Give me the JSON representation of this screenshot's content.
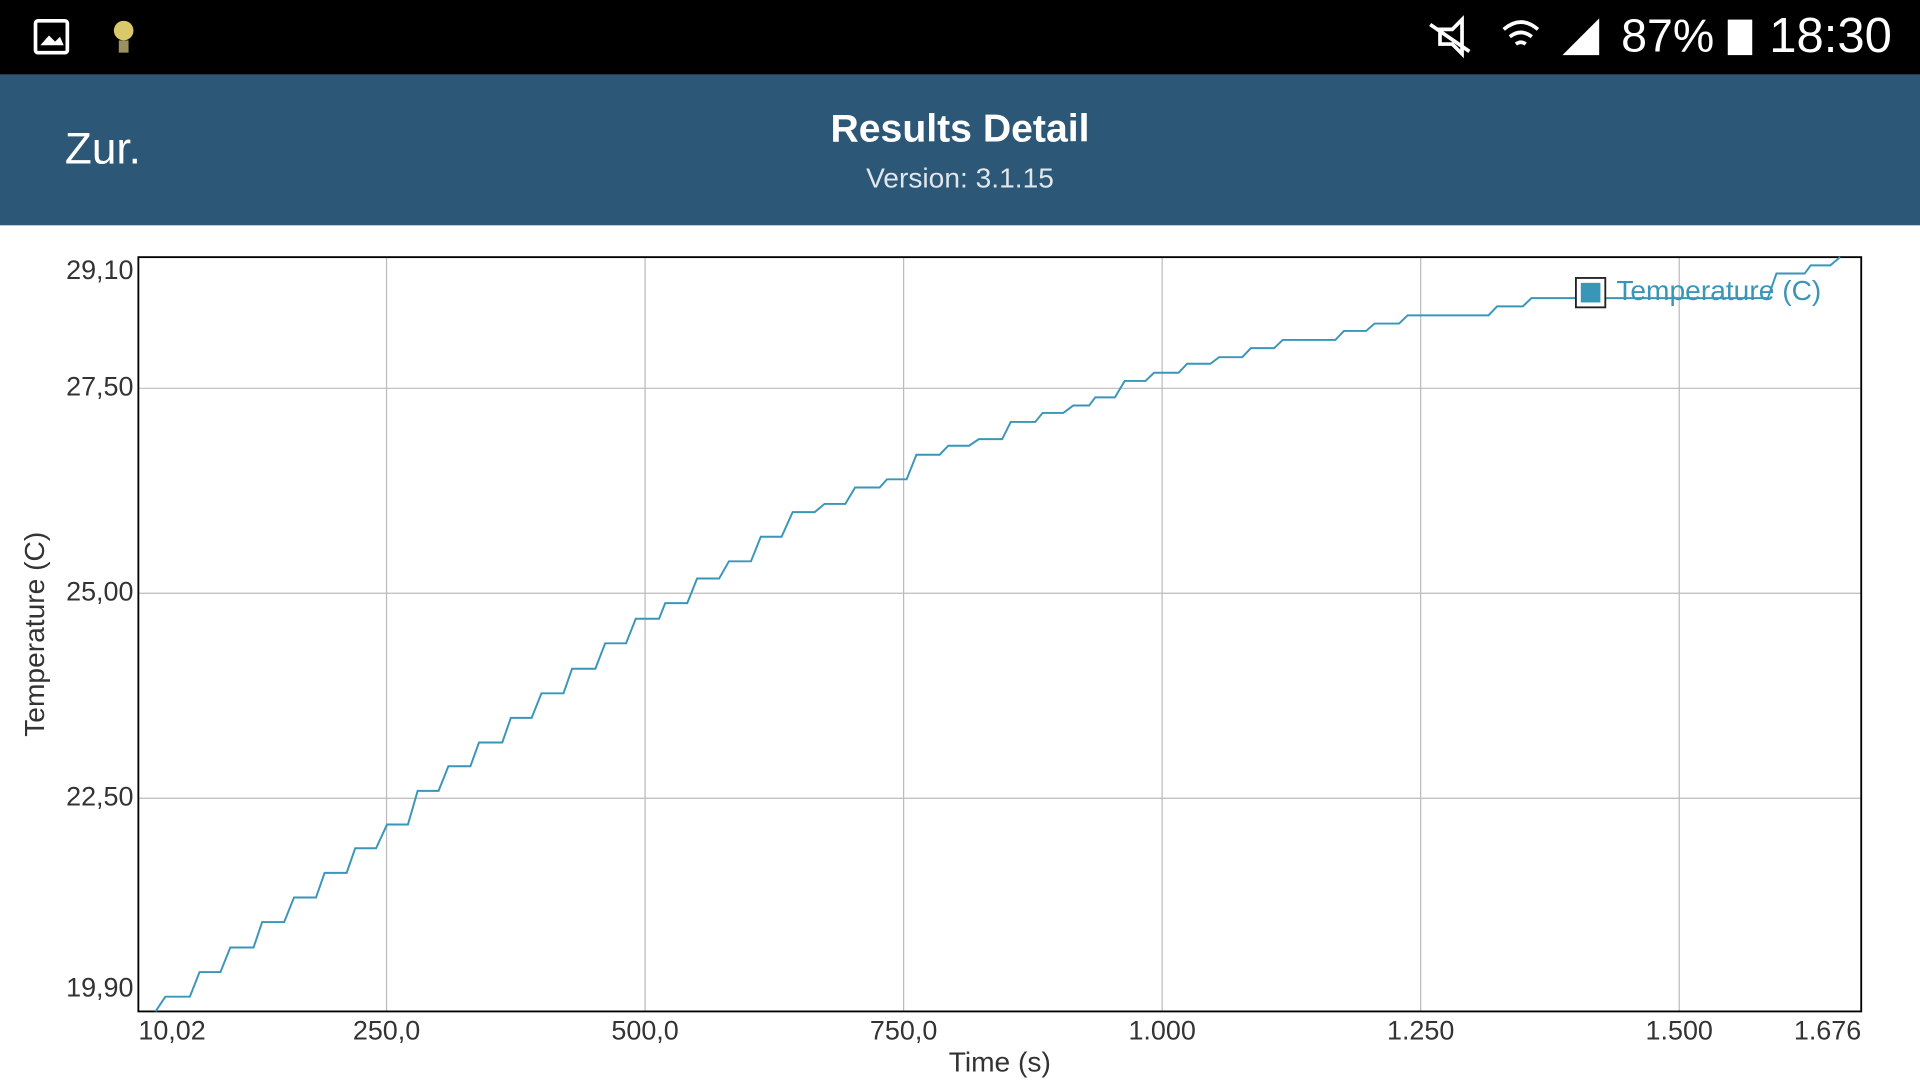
{
  "status_bar": {
    "battery": "87%",
    "time": "18:30"
  },
  "header": {
    "back": "Zur.",
    "title": "Results Detail",
    "subtitle": "Version: 3.1.15"
  },
  "chart_data": {
    "type": "line",
    "xlabel": "Time (s)",
    "ylabel": "Temperature (C)",
    "x": [
      26.6,
      36.1,
      59.8,
      69.2,
      89.4,
      98.9,
      121.4,
      129.7,
      151.0,
      160.5,
      181.8,
      190.1,
      211.4,
      219.7,
      239.9,
      250.5,
      270.7,
      280.1,
      300.3,
      309.8,
      331.1,
      339.4,
      361.9,
      370.2,
      390.3,
      399.8,
      421.1,
      429.4,
      451.9,
      461.4,
      481.6,
      491.0,
      513.5,
      519.5,
      540.8,
      550.3,
      571.6,
      581.1,
      602.4,
      611.9,
      632.0,
      642.7,
      664.0,
      673.5,
      693.6,
      703.1,
      726.8,
      733.9,
      752.9,
      762.4,
      784.9,
      793.2,
      813.3,
      822.8,
      845.3,
      853.6,
      877.3,
      884.4,
      904.5,
      914.0,
      929.4,
      935.3,
      954.3,
      963.8,
      983.9,
      992.2,
      1015.9,
      1024.2,
      1046.7,
      1055.0,
      1077.5,
      1085.8,
      1108.3,
      1116.6,
      1167.5,
      1175.8,
      1197.2,
      1205.4,
      1229.1,
      1237.4,
      1315.6,
      1323.9,
      1348.8,
      1357.1,
      1585.7,
      1594.0,
      1621.3,
      1627.2,
      1646.1,
      1655.6
    ],
    "series": [
      {
        "name": "Temperature (C)",
        "color": "#3a96b8",
        "values": [
          19.9,
          20.08,
          20.08,
          20.38,
          20.38,
          20.68,
          20.68,
          20.99,
          20.99,
          21.29,
          21.29,
          21.59,
          21.59,
          21.89,
          21.89,
          22.18,
          22.18,
          22.59,
          22.59,
          22.89,
          22.89,
          23.18,
          23.18,
          23.48,
          23.48,
          23.78,
          23.78,
          24.08,
          24.08,
          24.39,
          24.39,
          24.69,
          24.69,
          24.88,
          24.88,
          25.18,
          25.18,
          25.39,
          25.39,
          25.69,
          25.69,
          25.99,
          25.99,
          26.09,
          26.09,
          26.29,
          26.29,
          26.39,
          26.39,
          26.69,
          26.69,
          26.8,
          26.8,
          26.88,
          26.88,
          27.09,
          27.09,
          27.2,
          27.2,
          27.29,
          27.29,
          27.39,
          27.39,
          27.59,
          27.59,
          27.69,
          27.69,
          27.8,
          27.8,
          27.88,
          27.88,
          27.99,
          27.99,
          28.09,
          28.09,
          28.2,
          28.2,
          28.29,
          28.29,
          28.39,
          28.39,
          28.5,
          28.5,
          28.6,
          28.6,
          28.9,
          28.9,
          29.0,
          29.0,
          29.1
        ]
      }
    ],
    "xlim": [
      10.02,
      1676
    ],
    "ylim": [
      19.9,
      29.1
    ],
    "xticks": [
      {
        "value": 10.02,
        "label": "10,02"
      },
      {
        "value": 250,
        "label": "250,0"
      },
      {
        "value": 500,
        "label": "500,0"
      },
      {
        "value": 750,
        "label": "750,0"
      },
      {
        "value": 1000,
        "label": "1.000"
      },
      {
        "value": 1250,
        "label": "1.250"
      },
      {
        "value": 1500,
        "label": "1.500"
      },
      {
        "value": 1676,
        "label": "1.676"
      }
    ],
    "yticks": [
      {
        "value": 19.9,
        "label": "19,90"
      },
      {
        "value": 22.5,
        "label": "22,50"
      },
      {
        "value": 25,
        "label": "25,00"
      },
      {
        "value": 27.5,
        "label": "27,50"
      },
      {
        "value": 29.1,
        "label": "29,10"
      }
    ],
    "grid": true,
    "legend": "upper right"
  }
}
